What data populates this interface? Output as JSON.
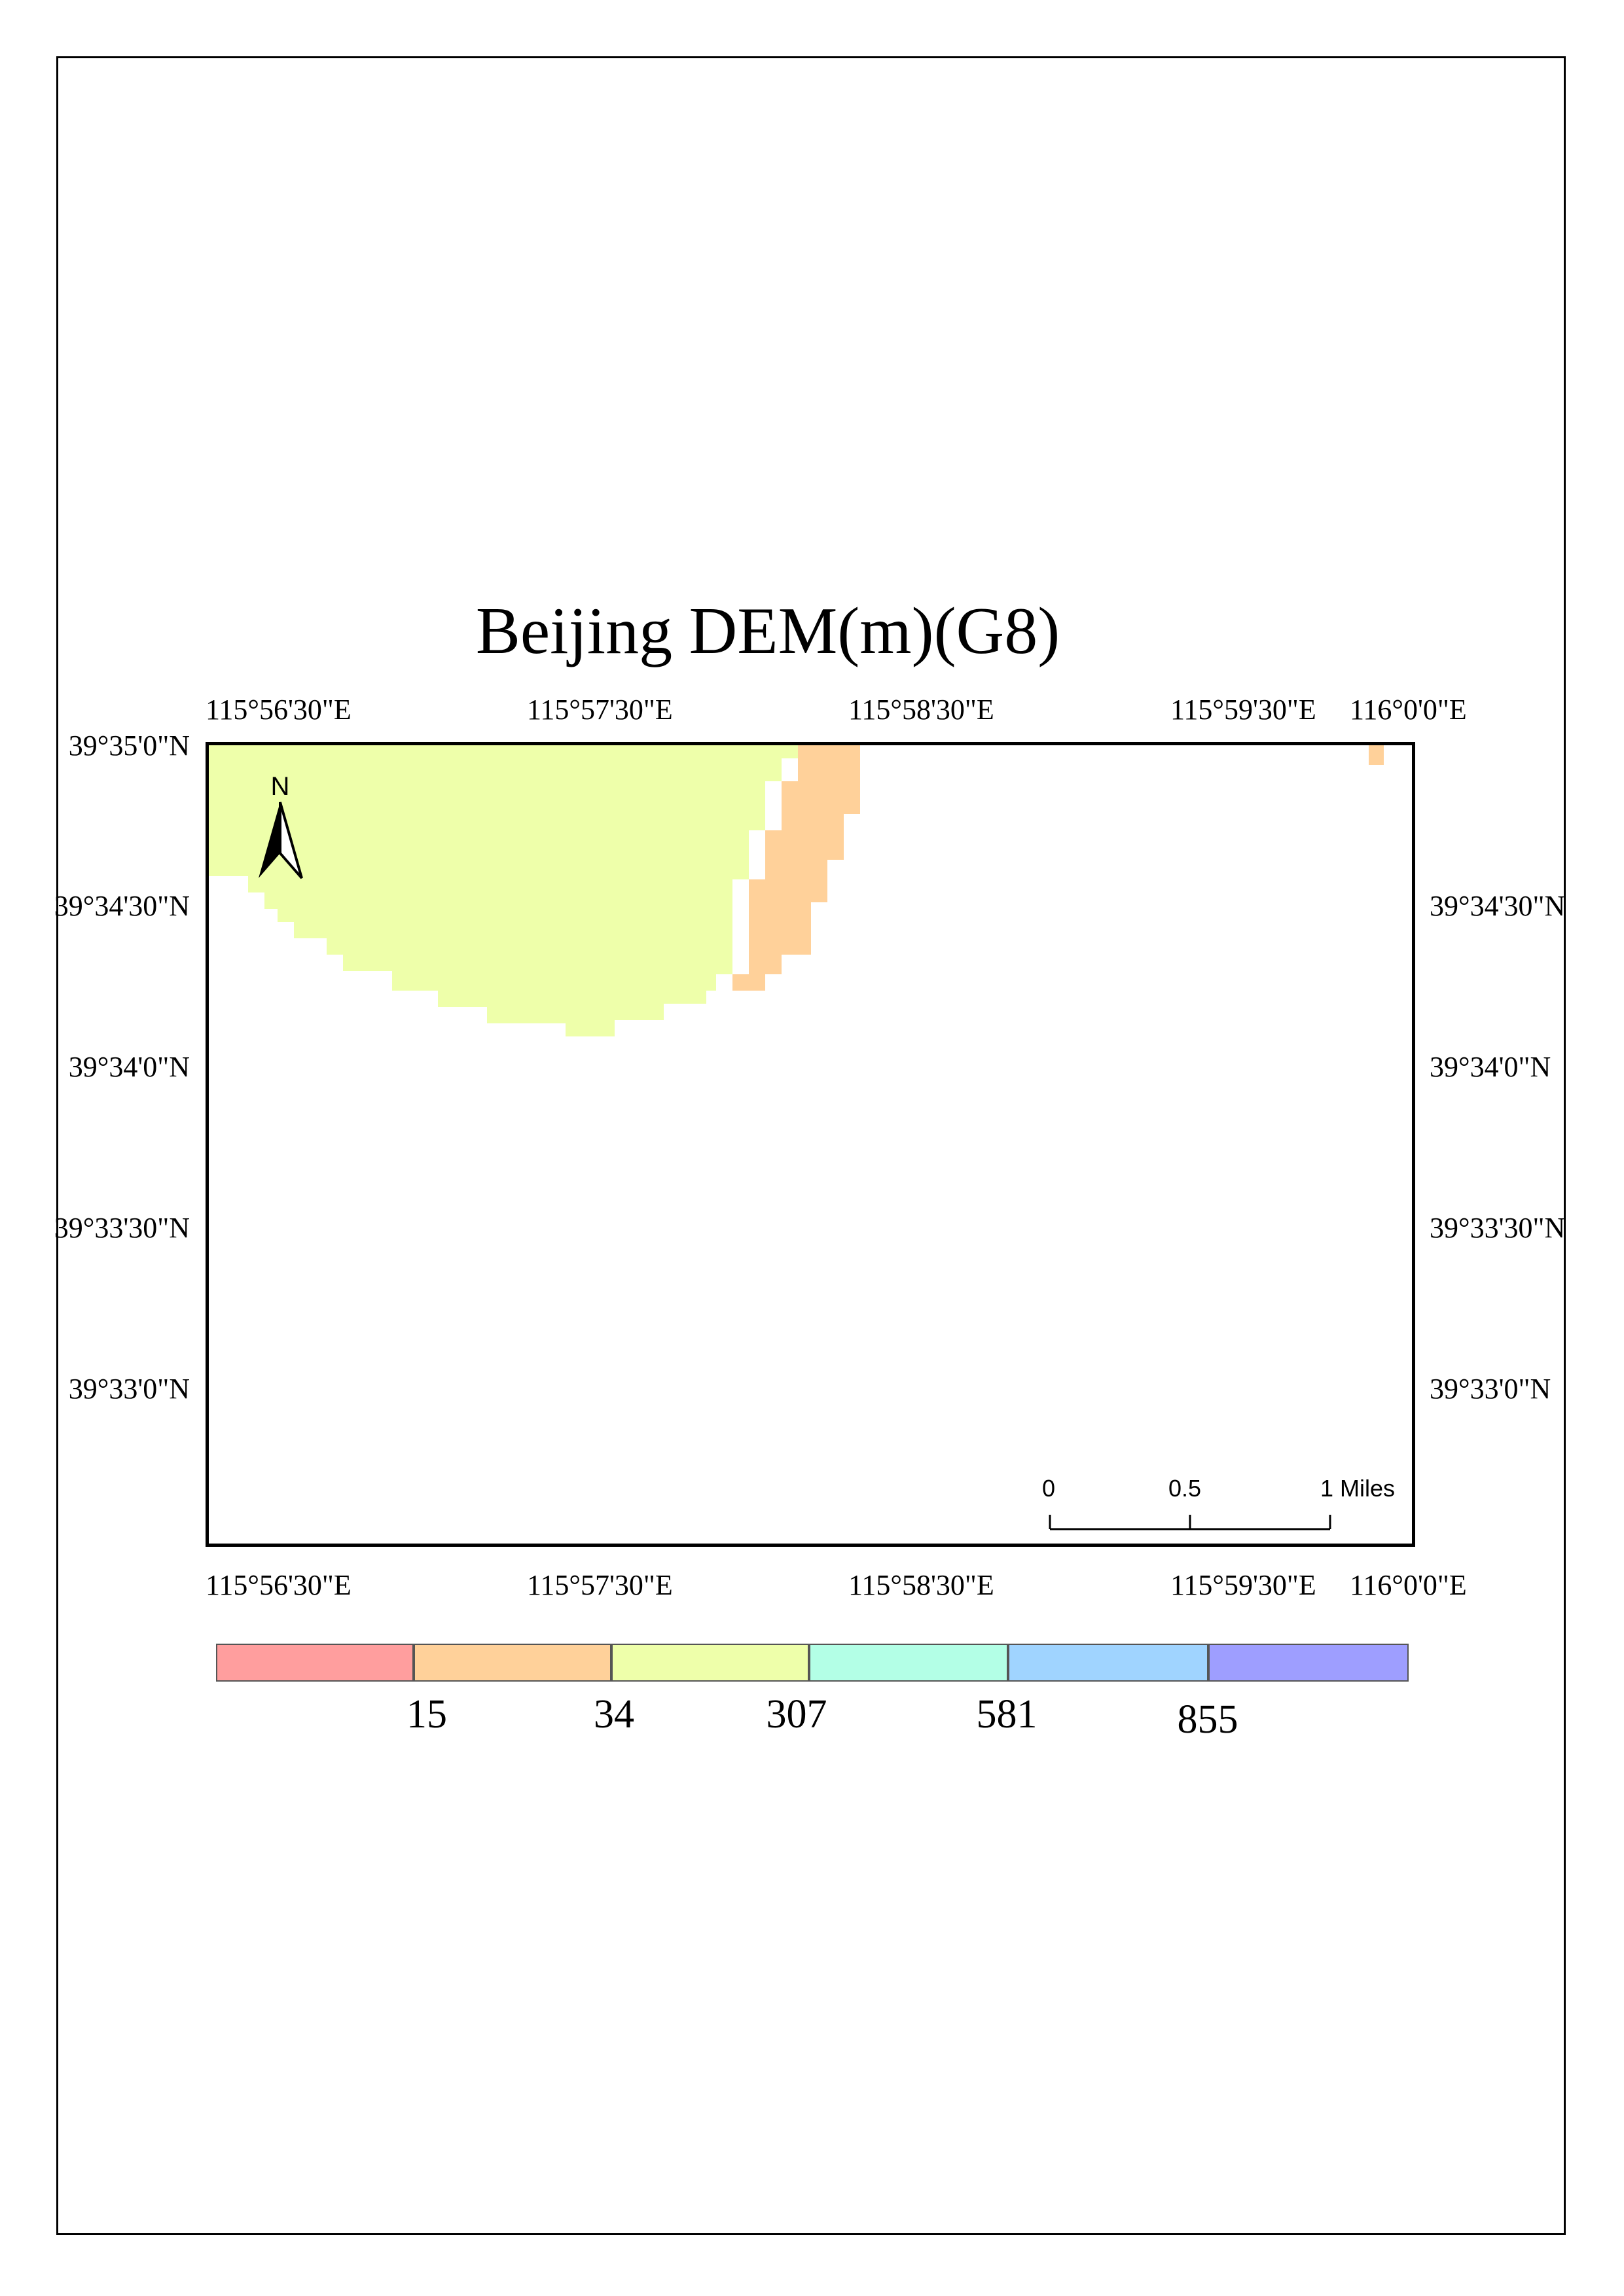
{
  "title": "Beijing DEM(m)(G8)",
  "map": {
    "longitude_labels": [
      "115°56'30\"E",
      "115°57'30\"E",
      "115°58'30\"E",
      "115°59'30\"E",
      "116°0'0\"E"
    ],
    "latitude_labels": [
      "39°35'0\"N",
      "39°34'30\"N",
      "39°34'0\"N",
      "39°33'30\"N",
      "39°33'0\"N"
    ],
    "north_arrow_label": "N",
    "scale_bar": {
      "labels": [
        "0",
        "0.5",
        "1 Miles"
      ],
      "ticks_miles": [
        0,
        0.5,
        1
      ]
    },
    "fill_colors": {
      "class_34_307": "#eeffaa",
      "class_15_34": "#ffd19a"
    }
  },
  "legend": {
    "colors": [
      "#ff9e9e",
      "#ffd19a",
      "#eeffaa",
      "#b3ffe6",
      "#a0d4ff",
      "#9e9eff"
    ],
    "break_labels": [
      "15",
      "34",
      "307",
      "581",
      "855"
    ]
  }
}
